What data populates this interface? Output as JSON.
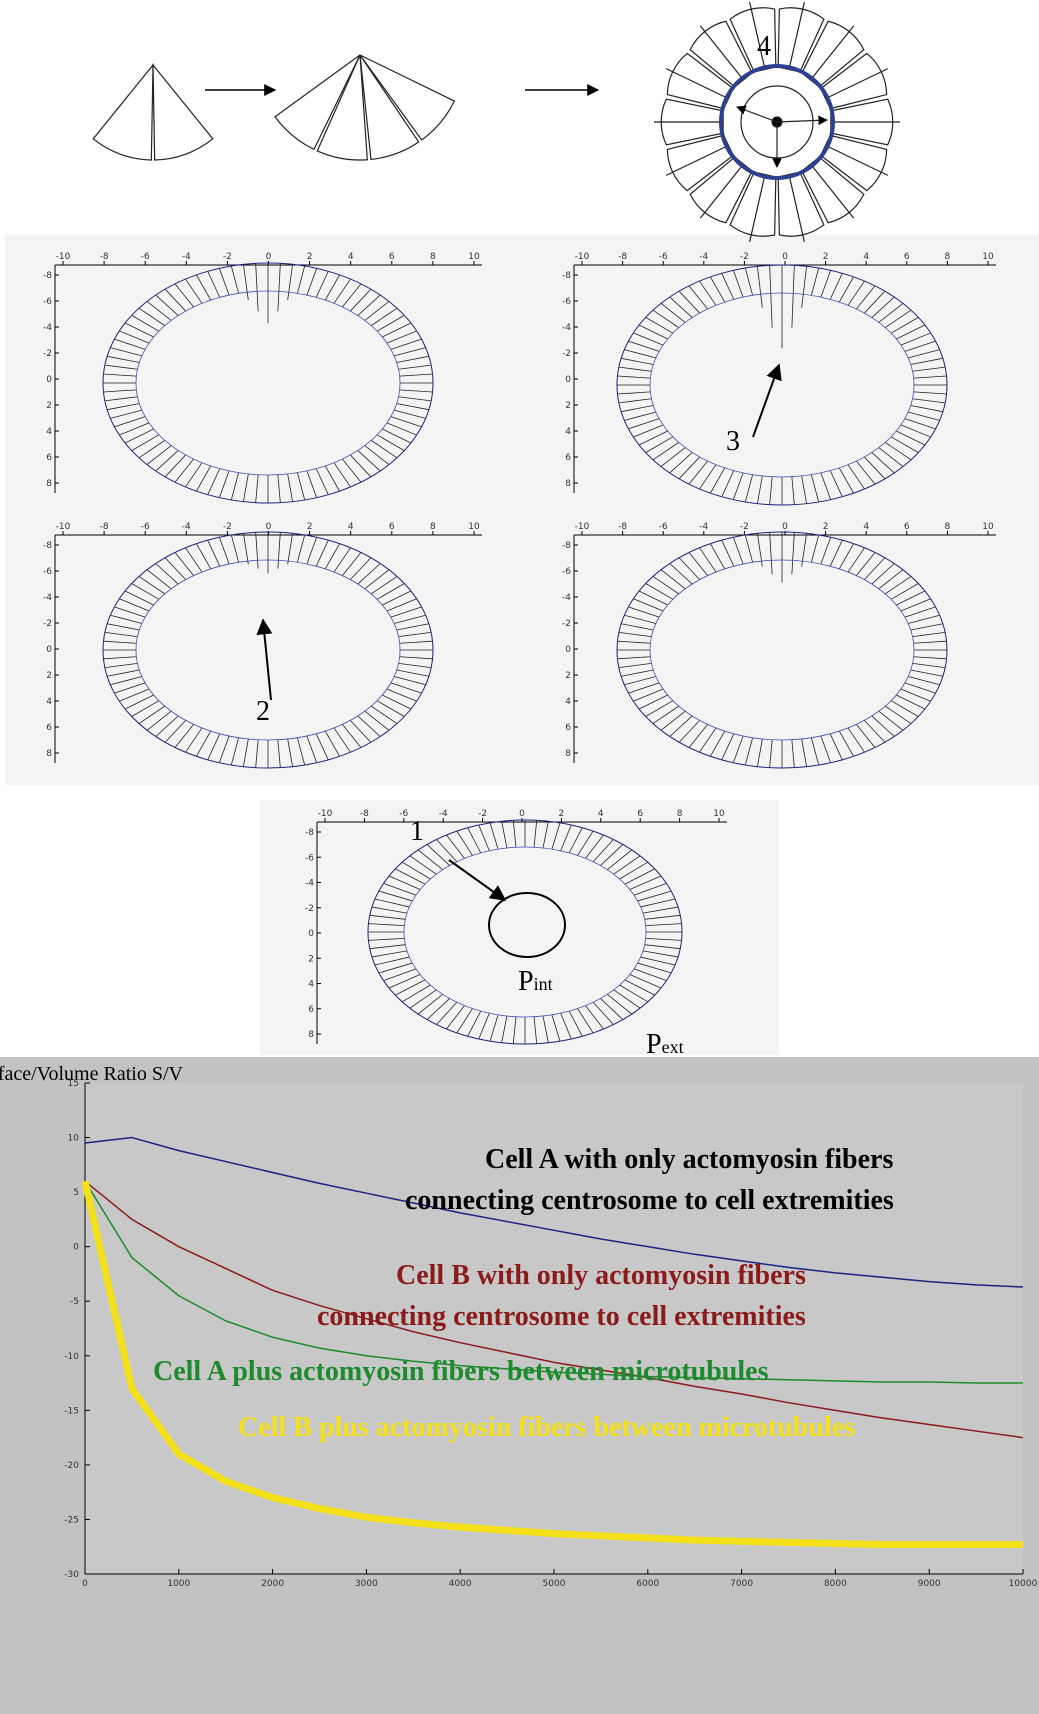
{
  "diagram": {
    "label": "4"
  },
  "ring_plots": {
    "xticks": [
      -10,
      -8,
      -6,
      -4,
      -2,
      0,
      2,
      4,
      6,
      8,
      10
    ],
    "yticks": [
      -8,
      -6,
      -4,
      -2,
      0,
      2,
      4,
      6,
      8
    ]
  },
  "annotations": {
    "arrow_1": "1",
    "arrow_2": "2",
    "arrow_3": "3",
    "p_int": {
      "base": "P",
      "sub": "int"
    },
    "p_ext": {
      "base": "P",
      "sub": "ext"
    }
  },
  "chart_data": {
    "type": "line",
    "title": "Surface/Volume Ratio S/V",
    "x": [
      0,
      500,
      1000,
      1500,
      2000,
      2500,
      3000,
      3500,
      4000,
      4500,
      5000,
      5500,
      6000,
      6500,
      7000,
      7500,
      8000,
      8500,
      9000,
      9500,
      10000
    ],
    "xlim": [
      0,
      10000
    ],
    "xticks": [
      0,
      1000,
      2000,
      3000,
      4000,
      5000,
      6000,
      7000,
      8000,
      9000,
      10000
    ],
    "ylim": [
      -30,
      15
    ],
    "yticks": [
      15,
      10,
      5,
      0,
      -5,
      -10,
      -15,
      -20,
      -25,
      -30
    ],
    "series": [
      {
        "name": "Cell A with only actomyosin fibers connecting centrosome to cell extremities",
        "color": "#1a237e",
        "width": 1.5,
        "values": [
          9.5,
          10,
          8.8,
          7.8,
          6.8,
          5.8,
          4.9,
          4.0,
          3.1,
          2.3,
          1.5,
          0.7,
          0,
          -0.7,
          -1.3,
          -1.9,
          -2.4,
          -2.8,
          -3.2,
          -3.5,
          -3.7
        ]
      },
      {
        "name": "Cell B with only actomyosin fibers connecting centrosome to cell extremities",
        "color": "#8b1a1a",
        "width": 1.5,
        "values": [
          6,
          2.5,
          0,
          -2,
          -4,
          -5.4,
          -6.6,
          -7.8,
          -8.8,
          -9.7,
          -10.6,
          -11.3,
          -12,
          -12.8,
          -13.5,
          -14.3,
          -15,
          -15.7,
          -16.3,
          -16.9,
          -17.5
        ]
      },
      {
        "name": "Cell A plus actomyosin fibers between microtubules",
        "color": "#1e8a2e",
        "width": 1.5,
        "values": [
          6,
          -1,
          -4.5,
          -6.8,
          -8.3,
          -9.3,
          -10,
          -10.5,
          -10.9,
          -11.2,
          -11.5,
          -11.7,
          -11.9,
          -12,
          -12.1,
          -12.2,
          -12.3,
          -12.4,
          -12.4,
          -12.5,
          -12.5
        ]
      },
      {
        "name": "Cell B plus actomyosin fibers between microtubules",
        "color": "#f5e11a",
        "width": 7,
        "values": [
          6,
          -13,
          -19,
          -21.5,
          -23,
          -24,
          -24.8,
          -25.3,
          -25.7,
          -26,
          -26.3,
          -26.5,
          -26.7,
          -26.9,
          -27,
          -27.1,
          -27.2,
          -27.3,
          -27.3,
          -27.3,
          -27.3
        ]
      }
    ],
    "annotations": [
      {
        "lines": [
          "Cell A with only actomyosin fibers",
          "connecting centrosome to cell extremities"
        ],
        "color": "#000000"
      },
      {
        "lines": [
          "Cell B with only actomyosin fibers",
          "connecting centrosome to cell extremities"
        ],
        "color": "#8b1a1a"
      },
      {
        "lines": [
          "Cell A plus actomyosin fibers between microtubules"
        ],
        "color": "#1e8a2e"
      },
      {
        "lines": [
          "Cell B plus actomyosin fibers between microtubules"
        ],
        "color": "#f5e11a"
      }
    ]
  }
}
